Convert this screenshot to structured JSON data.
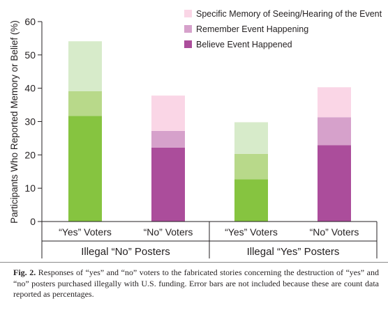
{
  "chart_data": {
    "type": "bar",
    "stacked": true,
    "title": "",
    "ylabel": "Participants Who Reported Memory or Belief (%)",
    "xlabel": "",
    "ylim": [
      0,
      60
    ],
    "yticks": [
      0,
      10,
      20,
      30,
      40,
      50,
      60
    ],
    "grid": false,
    "legend_position": "top-right",
    "categories": [
      "“Yes” Voters",
      "“No” Voters",
      "“Yes” Voters",
      "“No” Voters"
    ],
    "groups": [
      {
        "label": "Illegal “No” Posters",
        "categories": [
          0,
          1
        ]
      },
      {
        "label": "Illegal “Yes” Posters",
        "categories": [
          2,
          3
        ]
      }
    ],
    "series": [
      {
        "name": "Believe Event Happened",
        "values": [
          31.7,
          22.2,
          12.7,
          22.9
        ]
      },
      {
        "name": "Remember Event Happening",
        "values": [
          7.4,
          5.0,
          7.6,
          8.4
        ]
      },
      {
        "name": "Specific Memory of Seeing/Hearing of the Event",
        "values": [
          15.0,
          10.6,
          9.5,
          9.0
        ]
      }
    ],
    "legend_order": [
      "Specific Memory of Seeing/Hearing of the Event",
      "Remember Event Happening",
      "Believe Event Happened"
    ],
    "colors": {
      "yes_voters": [
        "#86c440",
        "#b8d98a",
        "#d7ebca"
      ],
      "no_voters": [
        "#ab4d9b",
        "#d6a1cb",
        "#fad6e6"
      ],
      "legend": {
        "Specific Memory of Seeing/Hearing of the Event": "#fad6e6",
        "Remember Event Happening": "#d6a1cb",
        "Believe Event Happened": "#ab4d9b"
      }
    }
  },
  "caption": {
    "label": "Fig. 2.",
    "text": "Responses of “yes” and “no” voters to the fabricated stories concerning the destruction of “yes” and “no” posters purchased illegally with U.S. funding. Error bars are not included because these are count data reported as percentages."
  }
}
